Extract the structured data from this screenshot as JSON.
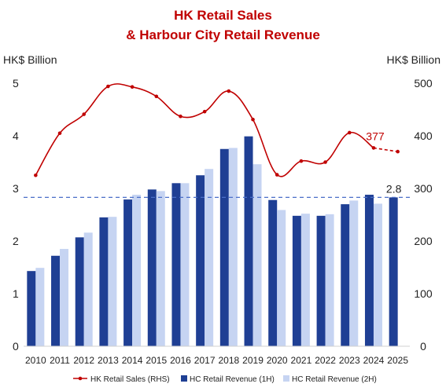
{
  "chart_data": {
    "type": "bar",
    "title_line1": "HK Retail Sales",
    "title_line2": "& Harbour City Retail Revenue",
    "ylabel_left": "HK$ Billion",
    "ylabel_right": "HK$ Billion",
    "ylim_left": [
      0,
      5
    ],
    "ylim_right": [
      0,
      500
    ],
    "yticks_left": [
      "0",
      "1",
      "2",
      "3",
      "4",
      "5"
    ],
    "yticks_right": [
      "0",
      "100",
      "200",
      "300",
      "400",
      "500"
    ],
    "categories": [
      "2010",
      "2011",
      "2012",
      "2013",
      "2014",
      "2015",
      "2016",
      "2017",
      "2018",
      "2019",
      "2020",
      "2021",
      "2022",
      "2023",
      "2024",
      "2025"
    ],
    "series": [
      {
        "name": "HC Retail Revenue (1H)",
        "axis": "left",
        "color": "#1f3f94",
        "values": [
          1.43,
          1.72,
          2.07,
          2.45,
          2.79,
          2.98,
          3.1,
          3.25,
          3.75,
          3.99,
          2.78,
          2.48,
          2.48,
          2.7,
          2.88,
          2.83
        ]
      },
      {
        "name": "HC Retail Revenue (2H)",
        "axis": "left",
        "color": "#c6d4f2",
        "values": [
          1.49,
          1.85,
          2.16,
          2.46,
          2.88,
          2.95,
          3.1,
          3.37,
          3.77,
          3.46,
          2.59,
          2.52,
          2.51,
          2.77,
          2.71,
          null
        ]
      },
      {
        "name": "HK Retail Sales (RHS)",
        "axis": "right",
        "type": "line",
        "color": "#c00000",
        "values": [
          325,
          405,
          441,
          494,
          493,
          475,
          437,
          446,
          485,
          431,
          326,
          352,
          350,
          406,
          377,
          370
        ],
        "projected_from_index": 14
      }
    ],
    "reference_line": {
      "value": 2.83,
      "axis": "left",
      "style": "dashed",
      "color": "#4a6fc8"
    },
    "annotations": [
      {
        "text": "377",
        "series": "HK Retail Sales (RHS)",
        "category": "2024",
        "color": "#c00000"
      },
      {
        "text": "2.8",
        "series": "HC Retail Revenue (1H)",
        "category": "2025",
        "color": "#222222"
      }
    ],
    "legend_position": "bottom",
    "grid": false
  }
}
